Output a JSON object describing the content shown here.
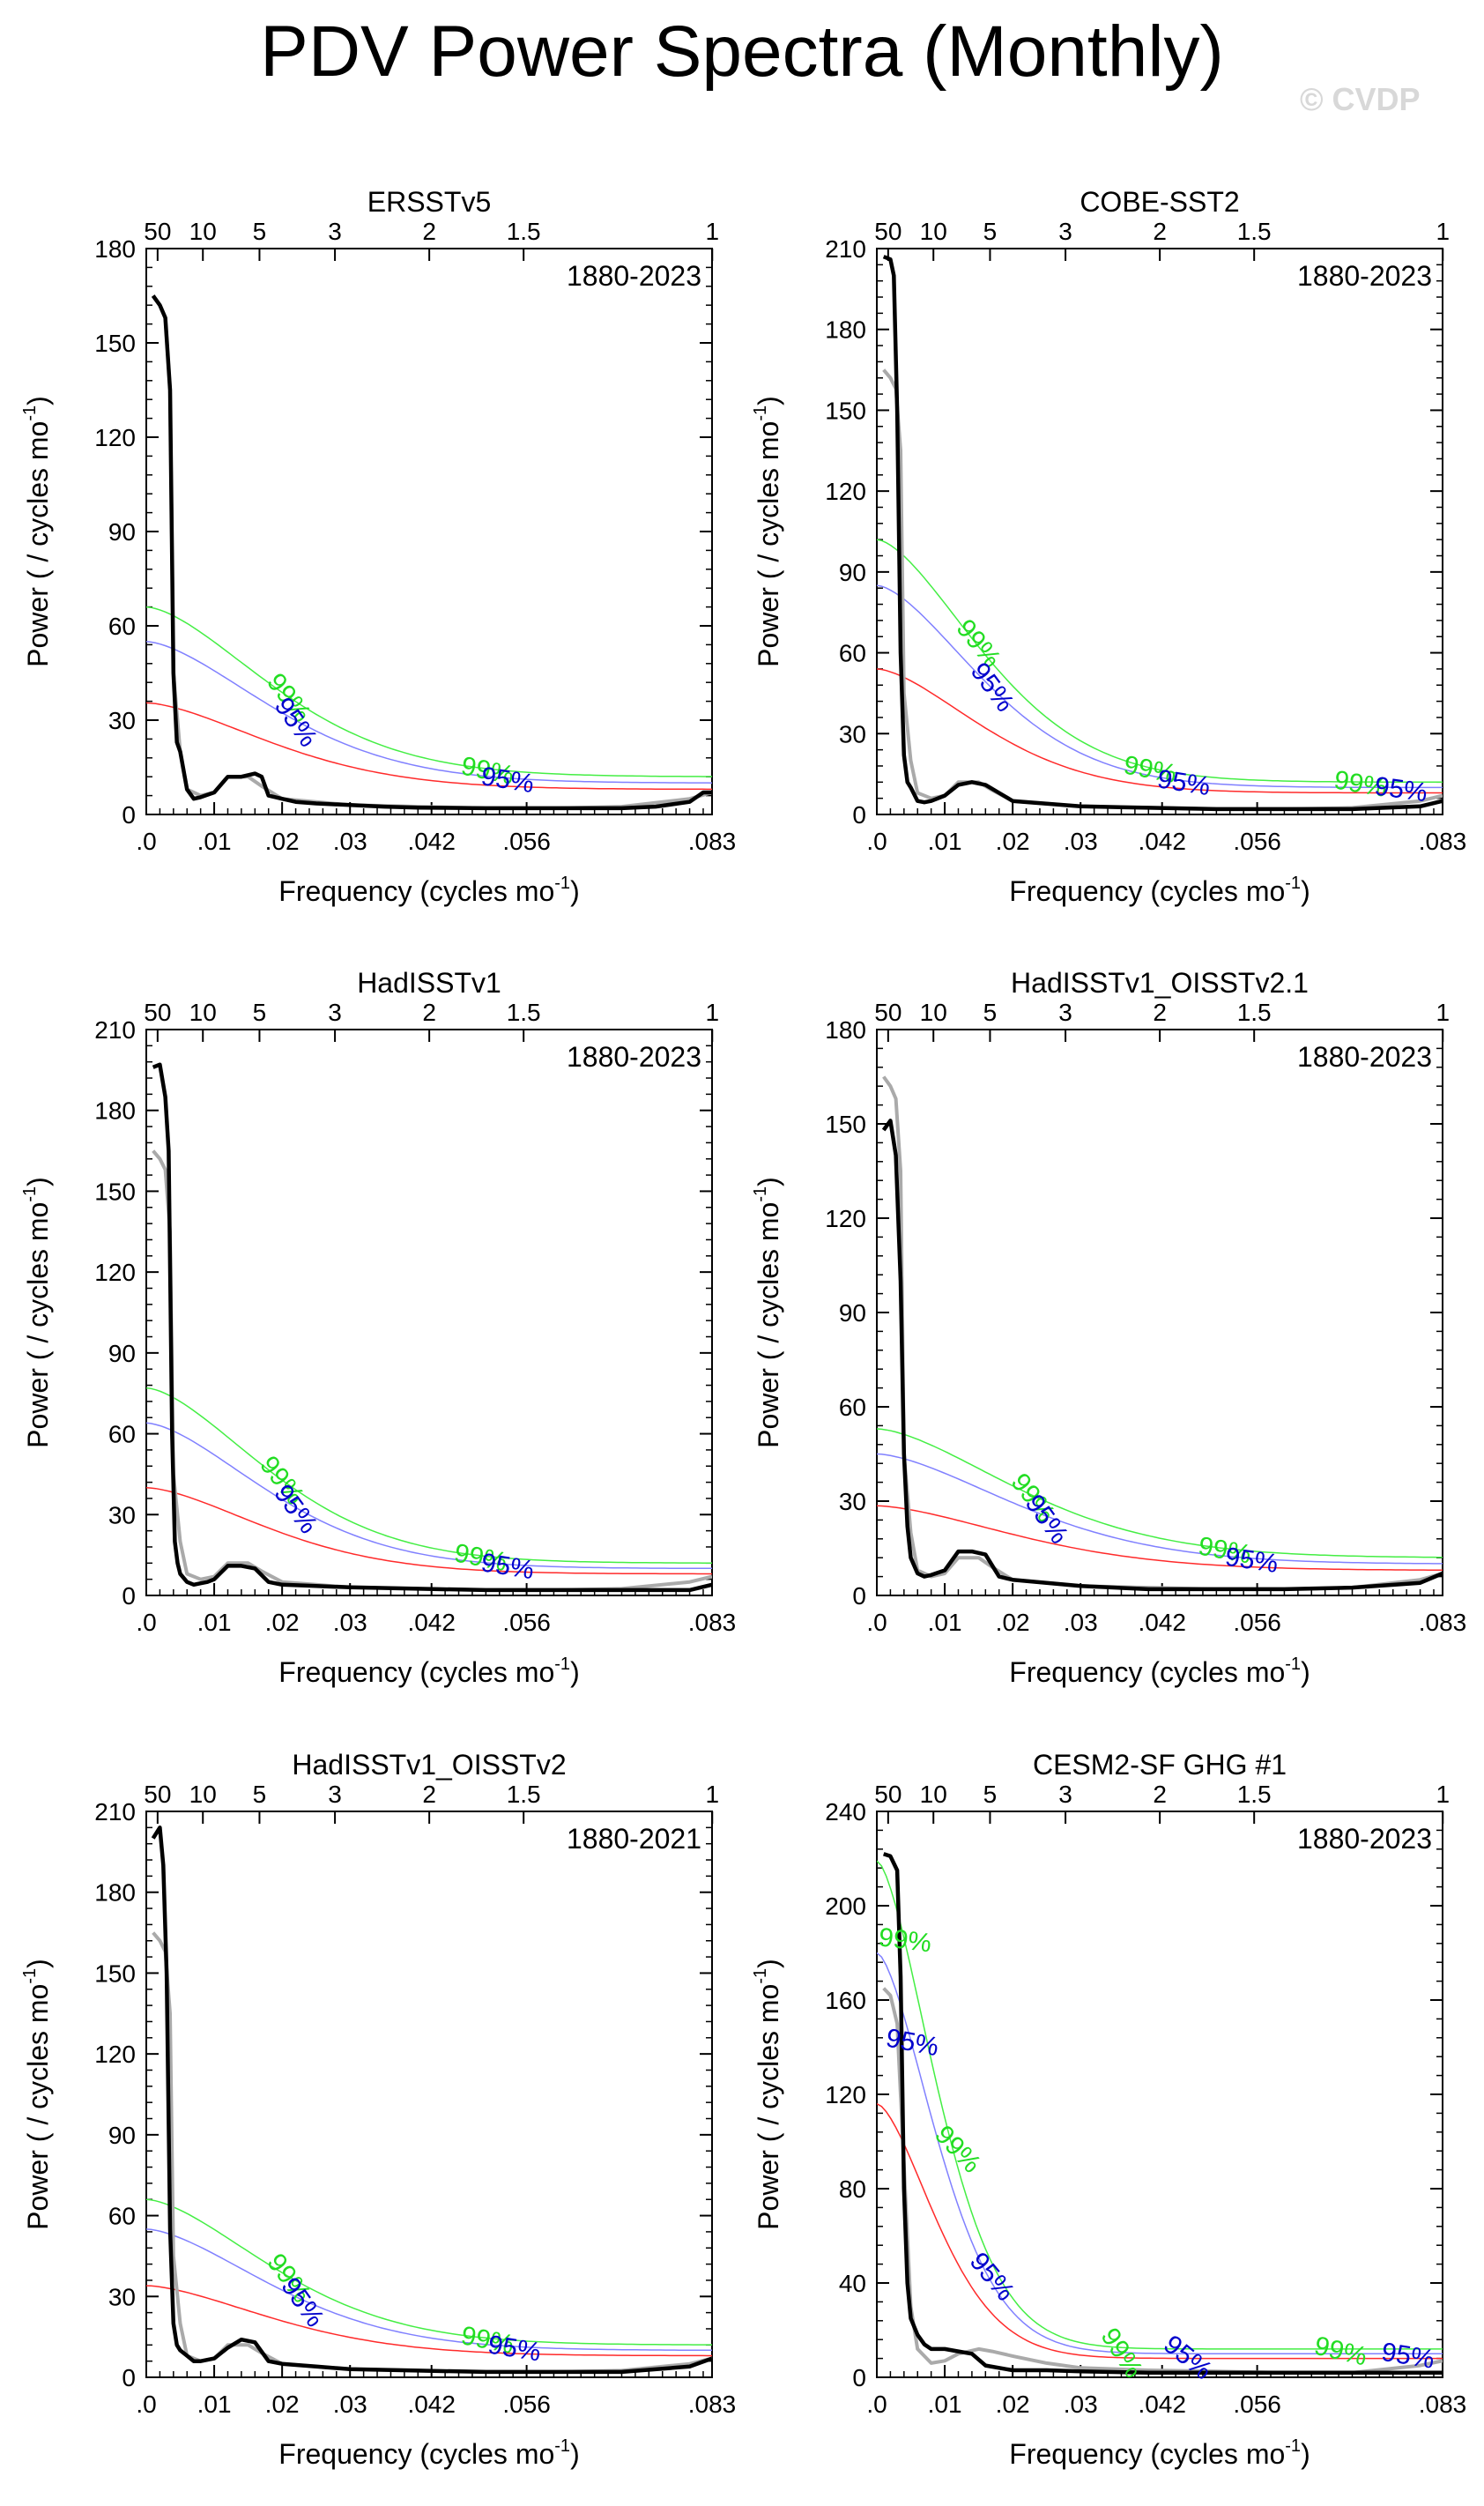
{
  "title": "PDV Power Spectra (Monthly)",
  "watermark": "© CVDP",
  "common": {
    "xlabel": "Frequency (cycles mo",
    "xlabel_sup": "-1",
    "xlabel_close": ")",
    "ylabel": "Power ( / cycles mo",
    "ylabel_sup": "-1",
    "ylabel_close": ")",
    "xlim": [
      0,
      0.0833
    ],
    "bottom_ticks": [
      {
        "value": 0,
        "label": ".0"
      },
      {
        "value": 0.01,
        "label": ".01"
      },
      {
        "value": 0.02,
        "label": ".02"
      },
      {
        "value": 0.03,
        "label": ".03"
      },
      {
        "value": 0.042,
        "label": ".042"
      },
      {
        "value": 0.056,
        "label": ".056"
      },
      {
        "value": 0.0833,
        "label": ".083"
      }
    ],
    "top_ticks": [
      {
        "value": 0.001667,
        "label": "50"
      },
      {
        "value": 0.008333,
        "label": "10"
      },
      {
        "value": 0.016667,
        "label": "5"
      },
      {
        "value": 0.027778,
        "label": "3"
      },
      {
        "value": 0.041667,
        "label": "2"
      },
      {
        "value": 0.055556,
        "label": "1.5"
      },
      {
        "value": 0.083333,
        "label": "1"
      }
    ],
    "line_colors": {
      "spectrum": "#000000",
      "reference": "#aaaaaa",
      "red_noise": "#ff2a2a",
      "conf95": "#8080ff",
      "conf99": "#44ee44",
      "label95": "#0000cc",
      "label99": "#22dd22"
    },
    "label95": "95%",
    "label99": "99%"
  },
  "chart_data": [
    {
      "type": "line",
      "title": "ERSSTv5",
      "years": "1880-2023",
      "ylim": [
        0,
        180
      ],
      "yticks": [
        0,
        30,
        60,
        90,
        120,
        150,
        180
      ],
      "ylabels": [
        "0",
        "30",
        "60",
        "90",
        "120",
        "150",
        "180"
      ],
      "red_noise": [
        35.5,
        8
      ],
      "conf95": [
        55,
        10
      ],
      "conf99": [
        66,
        12
      ],
      "decay": 0.025,
      "labels95": [
        [
          0.021,
          0.91
        ],
        [
          0.053,
          0.15
        ]
      ],
      "labels99": [
        [
          0.02,
          0.87
        ],
        [
          0.05,
          0.19
        ]
      ],
      "series": [
        {
          "name": "spectrum",
          "x": [
            0.001,
            0.002,
            0.0028,
            0.0035,
            0.004,
            0.0045,
            0.005,
            0.006,
            0.007,
            0.008,
            0.01,
            0.012,
            0.014,
            0.016,
            0.017,
            0.018,
            0.02,
            0.022,
            0.025,
            0.03,
            0.035,
            0.04,
            0.05,
            0.06,
            0.07,
            0.075,
            0.08,
            0.082,
            0.0833
          ],
          "y": [
            165,
            162,
            158,
            135,
            45,
            23,
            20,
            8,
            5,
            5.5,
            7,
            12,
            12,
            13,
            12,
            6,
            5,
            4,
            3.5,
            3,
            2.5,
            2.2,
            2,
            2,
            2,
            2.5,
            4,
            7,
            7
          ]
        },
        {
          "name": "reference",
          "x": [
            0.001,
            0.002,
            0.0028,
            0.0035,
            0.004,
            0.005,
            0.006,
            0.008,
            0.01,
            0.012,
            0.015,
            0.017,
            0.02,
            0.025,
            0.03,
            0.04,
            0.05,
            0.06,
            0.07,
            0.08,
            0.0833
          ],
          "y": [
            165,
            162,
            158,
            135,
            45,
            20,
            8,
            6,
            7,
            12,
            12,
            9,
            5,
            4,
            3,
            2.5,
            2,
            2,
            2.5,
            5,
            7
          ]
        }
      ]
    },
    {
      "type": "line",
      "title": "COBE-SST2",
      "years": "1880-2023",
      "ylim": [
        0,
        210
      ],
      "yticks": [
        0,
        30,
        60,
        90,
        120,
        150,
        180,
        210
      ],
      "ylabels": [
        "0",
        "30",
        "60",
        "90",
        "120",
        "150",
        "180",
        "210"
      ],
      "red_noise": [
        54,
        8
      ],
      "conf95": [
        85,
        10
      ],
      "conf99": [
        102,
        12
      ],
      "decay": 0.021,
      "labels95": [
        [
          0.016,
          0.89
        ],
        [
          0.045,
          0.15
        ],
        [
          0.077,
          0.13
        ]
      ],
      "labels99": [
        [
          0.014,
          0.85
        ],
        [
          0.04,
          0.18
        ],
        [
          0.071,
          0.16
        ]
      ],
      "series": [
        {
          "name": "spectrum",
          "x": [
            0.001,
            0.002,
            0.0025,
            0.003,
            0.0035,
            0.004,
            0.0045,
            0.005,
            0.006,
            0.007,
            0.008,
            0.01,
            0.012,
            0.014,
            0.016,
            0.018,
            0.02,
            0.025,
            0.03,
            0.04,
            0.05,
            0.06,
            0.07,
            0.08,
            0.0833
          ],
          "y": [
            207,
            206,
            200,
            150,
            60,
            22,
            12,
            10,
            5,
            4.5,
            5,
            7,
            11,
            12,
            11,
            8,
            5,
            4,
            3,
            2.5,
            2,
            2,
            2,
            3,
            5
          ]
        },
        {
          "name": "reference",
          "x": [
            0.001,
            0.002,
            0.0028,
            0.0035,
            0.004,
            0.005,
            0.006,
            0.008,
            0.01,
            0.012,
            0.015,
            0.017,
            0.02,
            0.025,
            0.03,
            0.04,
            0.05,
            0.06,
            0.07,
            0.08,
            0.0833
          ],
          "y": [
            165,
            162,
            158,
            135,
            45,
            20,
            8,
            6,
            7,
            12,
            12,
            9,
            5,
            4,
            3,
            2.5,
            2,
            2,
            2.5,
            5,
            7
          ]
        }
      ]
    },
    {
      "type": "line",
      "title": "HadISSTv1",
      "years": "1880-2023",
      "ylim": [
        0,
        210
      ],
      "yticks": [
        0,
        30,
        60,
        90,
        120,
        150,
        180,
        210
      ],
      "ylabels": [
        "0",
        "30",
        "60",
        "90",
        "120",
        "150",
        "180",
        "210"
      ],
      "red_noise": [
        40,
        8
      ],
      "conf95": [
        64,
        10
      ],
      "conf99": [
        77,
        12
      ],
      "decay": 0.024,
      "labels95": [
        [
          0.021,
          0.89
        ],
        [
          0.053,
          0.15
        ]
      ],
      "labels99": [
        [
          0.019,
          0.86
        ],
        [
          0.049,
          0.18
        ]
      ],
      "series": [
        {
          "name": "spectrum",
          "x": [
            0.001,
            0.002,
            0.0028,
            0.0033,
            0.0038,
            0.0042,
            0.0046,
            0.005,
            0.006,
            0.007,
            0.008,
            0.009,
            0.01,
            0.012,
            0.014,
            0.016,
            0.018,
            0.02,
            0.025,
            0.03,
            0.04,
            0.05,
            0.06,
            0.07,
            0.08,
            0.0833
          ],
          "y": [
            196,
            197,
            185,
            165,
            60,
            20,
            12,
            8,
            5,
            4,
            4.5,
            5,
            6,
            11,
            11,
            10,
            5,
            4,
            3.5,
            3,
            2.5,
            2,
            2,
            2,
            2,
            4
          ]
        },
        {
          "name": "reference",
          "x": [
            0.001,
            0.002,
            0.0028,
            0.0035,
            0.004,
            0.005,
            0.006,
            0.008,
            0.01,
            0.012,
            0.015,
            0.017,
            0.02,
            0.025,
            0.03,
            0.04,
            0.05,
            0.06,
            0.07,
            0.08,
            0.0833
          ],
          "y": [
            165,
            162,
            158,
            135,
            45,
            20,
            8,
            6,
            7,
            12,
            12,
            9,
            5,
            4,
            3,
            2.5,
            2,
            2,
            2.5,
            5,
            7
          ]
        }
      ]
    },
    {
      "type": "line",
      "title": "HadISSTv1_OISSTv2.1",
      "years": "1880-2023",
      "ylim": [
        0,
        180
      ],
      "yticks": [
        0,
        30,
        60,
        90,
        120,
        150,
        180
      ],
      "ylabels": [
        "0",
        "30",
        "60",
        "90",
        "120",
        "150",
        "180"
      ],
      "red_noise": [
        28.5,
        8
      ],
      "conf95": [
        45,
        10
      ],
      "conf99": [
        53,
        12
      ],
      "decay": 0.028,
      "labels95": [
        [
          0.024,
          0.9
        ],
        [
          0.055,
          0.14
        ]
      ],
      "labels99": [
        [
          0.022,
          0.87
        ],
        [
          0.051,
          0.17
        ]
      ],
      "series": [
        {
          "name": "spectrum",
          "x": [
            0.001,
            0.002,
            0.0028,
            0.0035,
            0.004,
            0.0045,
            0.005,
            0.006,
            0.007,
            0.008,
            0.01,
            0.012,
            0.014,
            0.016,
            0.018,
            0.02,
            0.025,
            0.03,
            0.04,
            0.05,
            0.06,
            0.07,
            0.08,
            0.0833
          ],
          "y": [
            148,
            151,
            140,
            100,
            45,
            22,
            12,
            7,
            6,
            6.5,
            8,
            14,
            14,
            13,
            6,
            5,
            4,
            3,
            2,
            2,
            2,
            2.5,
            4,
            7
          ]
        },
        {
          "name": "reference",
          "x": [
            0.001,
            0.002,
            0.0028,
            0.0035,
            0.004,
            0.005,
            0.006,
            0.008,
            0.01,
            0.012,
            0.015,
            0.017,
            0.02,
            0.025,
            0.03,
            0.04,
            0.05,
            0.06,
            0.07,
            0.08,
            0.0833
          ],
          "y": [
            165,
            162,
            158,
            135,
            45,
            20,
            8,
            6,
            7,
            12,
            12,
            9,
            5,
            4,
            3,
            2.5,
            2,
            2,
            2.5,
            5,
            7
          ]
        }
      ]
    },
    {
      "type": "line",
      "title": "HadISSTv1_OISSTv2",
      "years": "1880-2021",
      "ylim": [
        0,
        210
      ],
      "yticks": [
        0,
        30,
        60,
        90,
        120,
        150,
        180,
        210
      ],
      "ylabels": [
        "0",
        "30",
        "60",
        "90",
        "120",
        "150",
        "180",
        "210"
      ],
      "red_noise": [
        34,
        8
      ],
      "conf95": [
        55,
        10
      ],
      "conf99": [
        66,
        12
      ],
      "decay": 0.025,
      "labels95": [
        [
          0.022,
          0.91
        ],
        [
          0.054,
          0.15
        ]
      ],
      "labels99": [
        [
          0.02,
          0.88
        ],
        [
          0.05,
          0.18
        ]
      ],
      "series": [
        {
          "name": "spectrum",
          "x": [
            0.001,
            0.002,
            0.0025,
            0.003,
            0.0035,
            0.004,
            0.0045,
            0.005,
            0.006,
            0.007,
            0.008,
            0.01,
            0.012,
            0.014,
            0.016,
            0.018,
            0.02,
            0.025,
            0.03,
            0.04,
            0.05,
            0.06,
            0.07,
            0.08,
            0.0833
          ],
          "y": [
            200,
            204,
            190,
            150,
            55,
            20,
            12,
            10,
            8,
            6,
            6,
            7,
            11,
            14,
            13,
            6,
            5,
            4,
            3,
            2.5,
            2,
            2,
            2,
            4,
            7
          ]
        },
        {
          "name": "reference",
          "x": [
            0.001,
            0.002,
            0.0028,
            0.0035,
            0.004,
            0.005,
            0.006,
            0.008,
            0.01,
            0.012,
            0.015,
            0.017,
            0.02,
            0.025,
            0.03,
            0.04,
            0.05,
            0.06,
            0.07,
            0.08,
            0.0833
          ],
          "y": [
            165,
            162,
            158,
            135,
            45,
            20,
            8,
            6,
            7,
            12,
            12,
            9,
            5,
            4,
            3,
            2.5,
            2,
            2,
            2.5,
            5,
            7
          ]
        }
      ]
    },
    {
      "type": "line",
      "title": "CESM2-SF GHG #1",
      "years": "1880-2023",
      "ylim": [
        0,
        240
      ],
      "yticks": [
        0,
        40,
        80,
        120,
        160,
        200,
        240
      ],
      "ylabels": [
        "0",
        "40",
        "80",
        "120",
        "160",
        "200",
        "240"
      ],
      "red_noise": [
        116,
        8
      ],
      "conf95": [
        180,
        10
      ],
      "conf99": [
        219,
        12
      ],
      "decay": 0.012,
      "labels95": [
        [
          0.005,
          0.18
        ],
        [
          0.016,
          0.84
        ],
        [
          0.045,
          0.65
        ],
        [
          0.078,
          0.15
        ]
      ],
      "labels99": [
        [
          0.004,
          0.12
        ],
        [
          0.011,
          0.78
        ],
        [
          0.035,
          0.95
        ],
        [
          0.068,
          0.22
        ]
      ],
      "series": [
        {
          "name": "spectrum",
          "x": [
            0.001,
            0.002,
            0.003,
            0.0035,
            0.004,
            0.0045,
            0.005,
            0.006,
            0.007,
            0.008,
            0.01,
            0.012,
            0.014,
            0.016,
            0.02,
            0.025,
            0.03,
            0.04,
            0.05,
            0.06,
            0.07,
            0.08,
            0.0833
          ],
          "y": [
            222,
            221,
            215,
            170,
            80,
            40,
            25,
            18,
            14,
            12,
            12,
            11,
            10,
            5,
            3,
            3,
            2.5,
            2,
            2,
            2,
            2,
            2,
            2
          ]
        },
        {
          "name": "reference",
          "x": [
            0.001,
            0.002,
            0.003,
            0.004,
            0.005,
            0.006,
            0.008,
            0.01,
            0.012,
            0.015,
            0.017,
            0.02,
            0.025,
            0.03,
            0.04,
            0.05,
            0.06,
            0.07,
            0.08,
            0.0833
          ],
          "y": [
            165,
            162,
            150,
            90,
            30,
            12,
            6,
            7,
            10,
            12,
            11,
            9,
            6,
            4,
            3,
            2.5,
            2,
            2,
            5,
            7
          ]
        }
      ]
    }
  ]
}
